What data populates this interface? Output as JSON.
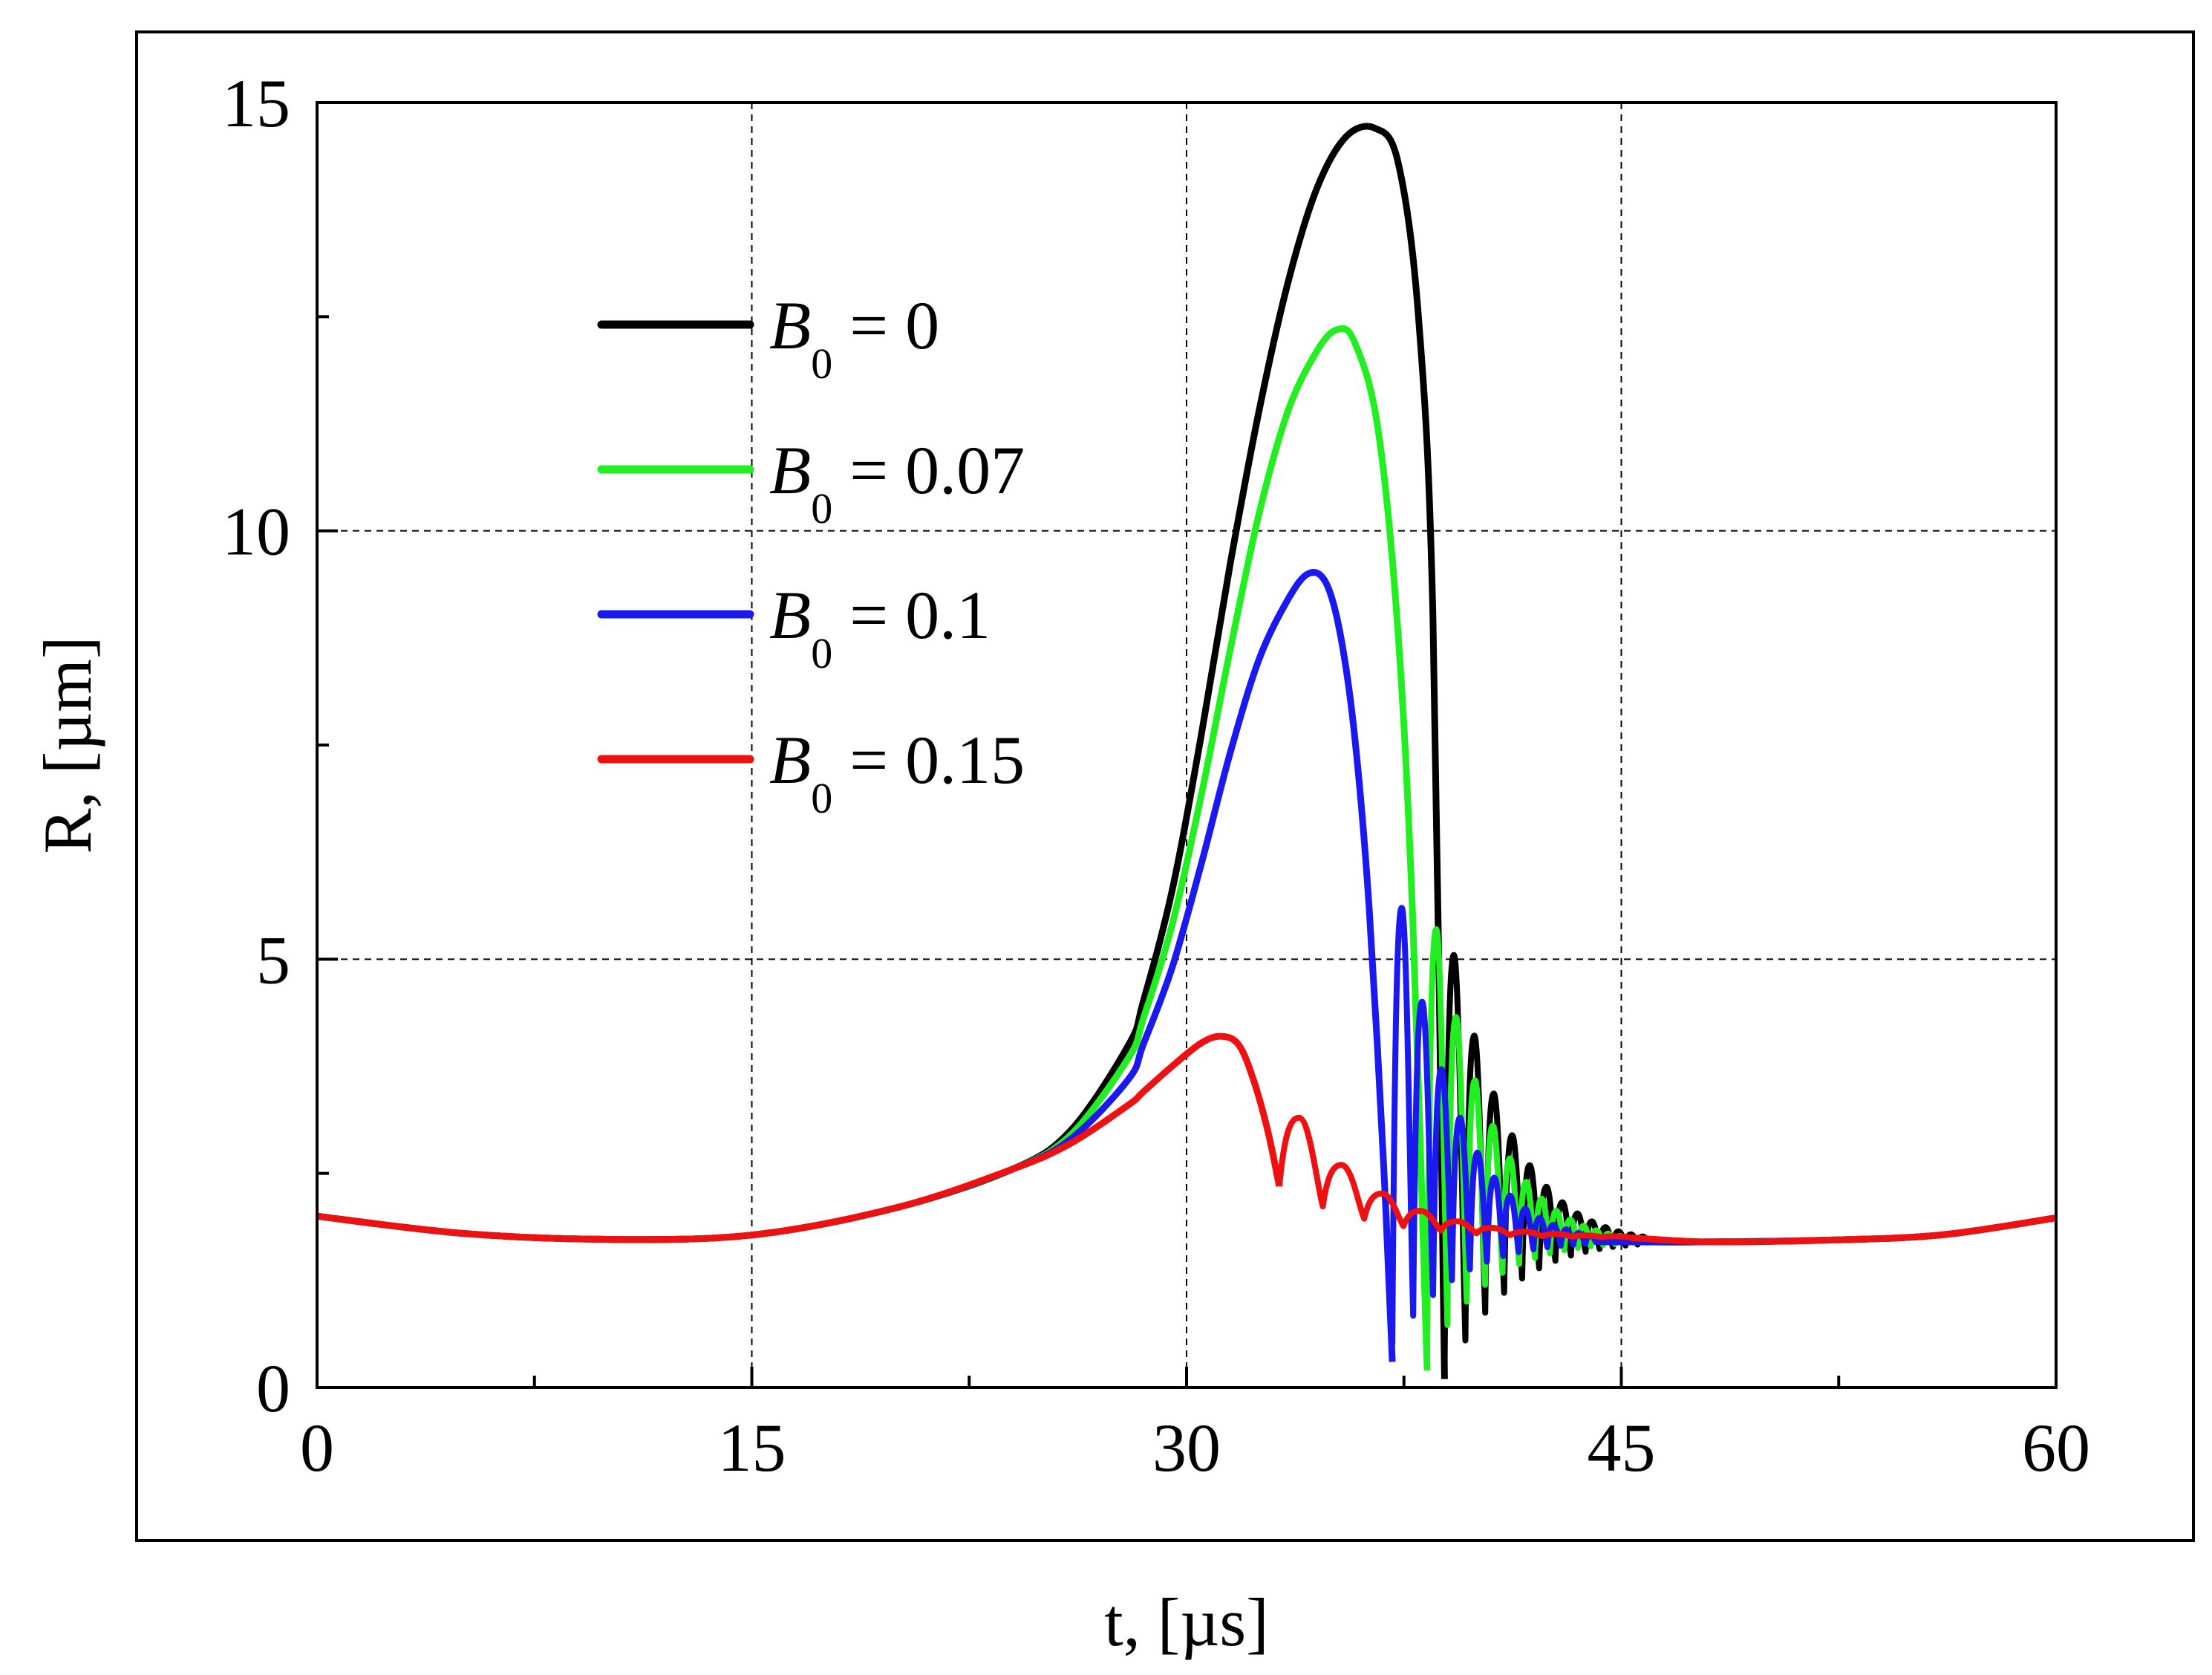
{
  "chart_data": {
    "type": "line",
    "xlabel": "t, [µs]",
    "ylabel": "R, [µm]",
    "xlim": [
      0,
      60
    ],
    "ylim": [
      0,
      15
    ],
    "x_ticks": [
      0,
      15,
      30,
      45,
      60
    ],
    "x_tick_labels": [
      "0",
      "15",
      "30",
      "45",
      "60"
    ],
    "y_ticks": [
      0,
      5,
      10,
      15
    ],
    "y_tick_labels": [
      "0",
      "5",
      "10",
      "15"
    ],
    "x_minor_ticks": [
      7.5,
      22.5,
      37.5,
      52.5
    ],
    "y_minor_ticks": [
      2.5,
      7.5,
      12.5
    ],
    "grid": "dashed, major ticks",
    "legend_position": "upper-left inside plot",
    "series": [
      {
        "name": "B0 = 0",
        "legend": {
          "var": "B",
          "sub": "0",
          "rest": " = 0"
        },
        "color": "#000000",
        "baseline": {
          "x": [
            0,
            5,
            10,
            15,
            20,
            24,
            26,
            28
          ],
          "y": [
            2.0,
            1.8,
            1.73,
            1.78,
            2.1,
            2.55,
            3.0,
            4.0
          ]
        },
        "rise": {
          "x": [
            28.5,
            29.5,
            30.5,
            31.5,
            32.5,
            33.5,
            34.5,
            35.5,
            36.5,
            37.3,
            38.0,
            38.5,
            38.9
          ],
          "y": [
            4.5,
            5.8,
            7.6,
            9.6,
            11.4,
            12.9,
            14.0,
            14.6,
            14.7,
            14.3,
            12.5,
            9.0,
            0.1
          ]
        },
        "rebound": {
          "start": 38.9,
          "period": 0.72,
          "decay": 0.33,
          "n": 13,
          "peak0": 5.05,
          "min0": 0.1,
          "base": 1.7,
          "tau": 2.4
        },
        "settle": {
          "x": [
            48,
            52,
            56,
            60
          ],
          "y": [
            1.7,
            1.72,
            1.78,
            1.98
          ]
        }
      },
      {
        "name": "B0 = 0.07",
        "legend": {
          "var": "B",
          "sub": "0",
          "rest": " = 0.07"
        },
        "color": "#22ee22",
        "baseline": {
          "x": [
            0,
            5,
            10,
            15,
            20,
            24,
            26,
            28
          ],
          "y": [
            2.0,
            1.8,
            1.73,
            1.78,
            2.1,
            2.55,
            2.95,
            3.85
          ]
        },
        "rise": {
          "x": [
            28.5,
            29.5,
            30.5,
            31.5,
            32.5,
            33.5,
            34.5,
            35.2,
            35.8,
            36.6,
            37.3,
            37.8,
            38.3
          ],
          "y": [
            4.3,
            5.4,
            6.9,
            8.6,
            10.2,
            11.4,
            12.1,
            12.35,
            12.2,
            11.2,
            8.8,
            5.5,
            0.2
          ]
        },
        "rebound": {
          "start": 38.3,
          "period": 0.7,
          "decay": 0.33,
          "n": 13,
          "peak0": 5.35,
          "min0": 0.35,
          "base": 1.7,
          "tau": 2.3
        },
        "settle": {
          "x": [
            48,
            52,
            56,
            60
          ],
          "y": [
            1.7,
            1.72,
            1.78,
            1.98
          ]
        }
      },
      {
        "name": "B0 = 0.1",
        "legend": {
          "var": "B",
          "sub": "0",
          "rest": " = 0.1"
        },
        "color": "#1a1aee",
        "baseline": {
          "x": [
            0,
            5,
            10,
            15,
            20,
            24,
            26,
            28
          ],
          "y": [
            2.0,
            1.8,
            1.73,
            1.78,
            2.1,
            2.55,
            2.9,
            3.6
          ]
        },
        "rise": {
          "x": [
            28.5,
            29.5,
            30.5,
            31.5,
            32.5,
            33.5,
            34.2,
            34.8,
            35.3,
            35.8,
            36.3,
            36.8,
            37.1
          ],
          "y": [
            4.0,
            4.9,
            6.1,
            7.4,
            8.5,
            9.2,
            9.5,
            9.4,
            8.8,
            7.6,
            5.6,
            2.6,
            0.3
          ]
        },
        "rebound": {
          "start": 37.1,
          "period": 0.72,
          "decay": 0.33,
          "n": 13,
          "peak0": 5.6,
          "min0": 0.5,
          "base": 1.7,
          "tau": 2.2
        },
        "settle": {
          "x": [
            48,
            52,
            56,
            60
          ],
          "y": [
            1.7,
            1.72,
            1.78,
            1.98
          ]
        }
      },
      {
        "name": "B0 = 0.15",
        "legend": {
          "var": "B",
          "sub": "0",
          "rest": " = 0.15"
        },
        "color": "#ee1111",
        "baseline": {
          "x": [
            0,
            5,
            10,
            15,
            20,
            24,
            26,
            28
          ],
          "y": [
            2.0,
            1.8,
            1.73,
            1.78,
            2.1,
            2.55,
            2.85,
            3.3
          ]
        },
        "rise": {
          "x": [
            28.5,
            29.5,
            30.5,
            31.2,
            31.8,
            32.3,
            32.8,
            33.2
          ],
          "y": [
            3.45,
            3.75,
            4.02,
            4.1,
            4.0,
            3.6,
            3.0,
            2.35
          ]
        },
        "rebound": {
          "start": 33.2,
          "period": 1.5,
          "decay": 0.5,
          "n": 10,
          "peak0": 3.15,
          "min0": 2.35,
          "base": 1.75,
          "tau": 4.0
        },
        "settle": {
          "x": [
            48,
            52,
            56,
            60
          ],
          "y": [
            1.7,
            1.72,
            1.78,
            1.98
          ]
        }
      }
    ]
  }
}
